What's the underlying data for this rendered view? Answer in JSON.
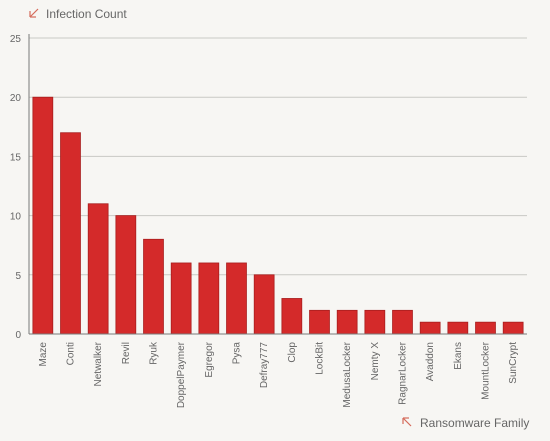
{
  "chart_data": {
    "type": "bar",
    "ylabel": "Infection Count",
    "xlabel": "Ransomware Family",
    "ylim": [
      0,
      25
    ],
    "yticks": [
      0,
      5,
      10,
      15,
      20,
      25
    ],
    "grid": true,
    "categories": [
      "Maze",
      "Conti",
      "Netwalker",
      "Revil",
      "Ryuk",
      "DoppelPaymer",
      "Egregor",
      "Pysa",
      "Defray777",
      "Clop",
      "LockBit",
      "MedusaLocker",
      "Nemty X",
      "RagnarLocker",
      "Avaddon",
      "Ekans",
      "MountLocker",
      "SunCrypt"
    ],
    "values": [
      20,
      17,
      11,
      10,
      8,
      6,
      6,
      6,
      5,
      3,
      2,
      2,
      2,
      2,
      1,
      1,
      1,
      1
    ]
  },
  "colors": {
    "bar": "#d42a2a",
    "bar_edge": "#a81e1e",
    "grid": "#c9c9c4",
    "axis": "#7a7a7a",
    "background": "#f7f6f3"
  },
  "icons": {
    "y_axis_title": "arrow-down-left-icon",
    "x_axis_title": "arrow-up-left-icon"
  }
}
